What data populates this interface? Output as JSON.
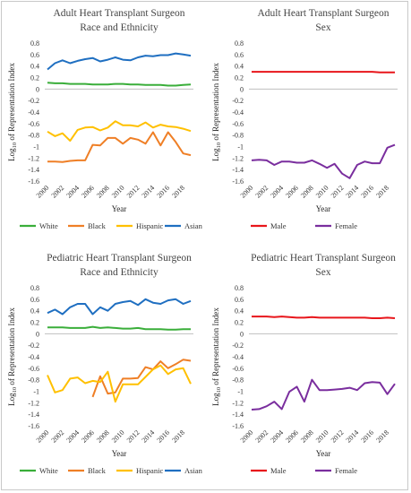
{
  "chart_data": [
    {
      "type": "line",
      "title": "Adult Heart Transplant Surgeon",
      "subtitle": "Race and Ethnicity",
      "xlabel": "Year",
      "ylabel": "Log10 of Representation Index",
      "ylim": [
        -1.6,
        0.8
      ],
      "xlim": [
        2000,
        2019
      ],
      "grid": false,
      "legend_position": "bottom",
      "x_ticks": [
        "2000",
        "2002",
        "2004",
        "2006",
        "2008",
        "2010",
        "2012",
        "2014",
        "2016",
        "2018"
      ],
      "y_ticks": [
        "0.8",
        "0.6",
        "0.4",
        "0.2",
        "0",
        "-0.2",
        "-0.4",
        "-0.6",
        "-0.8",
        "-1",
        "-1.2",
        "-1.4",
        "-1.6"
      ],
      "series": [
        {
          "name": "White",
          "color": "#3aae3a",
          "x": [
            2000,
            2001,
            2002,
            2003,
            2004,
            2005,
            2006,
            2007,
            2008,
            2009,
            2010,
            2011,
            2012,
            2013,
            2014,
            2015,
            2016,
            2017,
            2018,
            2019
          ],
          "values": [
            0.11,
            0.1,
            0.1,
            0.09,
            0.09,
            0.09,
            0.08,
            0.08,
            0.08,
            0.09,
            0.09,
            0.08,
            0.08,
            0.07,
            0.07,
            0.07,
            0.06,
            0.06,
            0.07,
            0.08
          ]
        },
        {
          "name": "Black",
          "color": "#ef7f26",
          "x": [
            2000,
            2001,
            2002,
            2003,
            2004,
            2005,
            2006,
            2007,
            2008,
            2009,
            2010,
            2011,
            2012,
            2013,
            2014,
            2015,
            2016,
            2017,
            2018,
            2019
          ],
          "values": [
            -1.26,
            -1.26,
            -1.27,
            -1.25,
            -1.24,
            -1.24,
            -0.97,
            -0.98,
            -0.85,
            -0.85,
            -0.95,
            -0.85,
            -0.88,
            -0.95,
            -0.75,
            -0.98,
            -0.75,
            -0.92,
            -1.12,
            -1.15
          ]
        },
        {
          "name": "Hispanic",
          "color": "#ffc000",
          "x": [
            2000,
            2001,
            2002,
            2003,
            2004,
            2005,
            2006,
            2007,
            2008,
            2009,
            2010,
            2011,
            2012,
            2013,
            2014,
            2015,
            2016,
            2017,
            2018,
            2019
          ],
          "values": [
            -0.74,
            -0.82,
            -0.77,
            -0.9,
            -0.71,
            -0.67,
            -0.66,
            -0.72,
            -0.67,
            -0.56,
            -0.63,
            -0.63,
            -0.65,
            -0.58,
            -0.67,
            -0.62,
            -0.65,
            -0.66,
            -0.69,
            -0.73
          ]
        },
        {
          "name": "Asian",
          "color": "#1f6fc1",
          "x": [
            2000,
            2001,
            2002,
            2003,
            2004,
            2005,
            2006,
            2007,
            2008,
            2009,
            2010,
            2011,
            2012,
            2013,
            2014,
            2015,
            2016,
            2017,
            2018,
            2019
          ],
          "values": [
            0.34,
            0.45,
            0.5,
            0.45,
            0.49,
            0.52,
            0.54,
            0.48,
            0.51,
            0.55,
            0.51,
            0.5,
            0.55,
            0.58,
            0.57,
            0.59,
            0.59,
            0.62,
            0.6,
            0.58
          ]
        }
      ]
    },
    {
      "type": "line",
      "title": "Adult Heart Transplant Surgeon",
      "subtitle": "Sex",
      "xlabel": "Year",
      "ylabel": "Log10 of Representation Index",
      "ylim": [
        -1.6,
        0.8
      ],
      "xlim": [
        2000,
        2019
      ],
      "grid": false,
      "legend_position": "bottom",
      "x_ticks": [
        "2000",
        "2002",
        "2004",
        "2006",
        "2008",
        "2010",
        "2012",
        "2014",
        "2016",
        "2018"
      ],
      "y_ticks": [
        "0.8",
        "0.6",
        "0.4",
        "0.2",
        "0",
        "-0.2",
        "-0.4",
        "-0.6",
        "-0.8",
        "-1",
        "-1.2",
        "-1.4",
        "-1.6"
      ],
      "series": [
        {
          "name": "Male",
          "color": "#e8161b",
          "x": [
            2000,
            2001,
            2002,
            2003,
            2004,
            2005,
            2006,
            2007,
            2008,
            2009,
            2010,
            2011,
            2012,
            2013,
            2014,
            2015,
            2016,
            2017,
            2018,
            2019
          ],
          "values": [
            0.3,
            0.3,
            0.3,
            0.3,
            0.3,
            0.3,
            0.3,
            0.3,
            0.3,
            0.3,
            0.3,
            0.3,
            0.3,
            0.3,
            0.3,
            0.3,
            0.3,
            0.29,
            0.29,
            0.29
          ]
        },
        {
          "name": "Female",
          "color": "#7a2e9e",
          "x": [
            2000,
            2001,
            2002,
            2003,
            2004,
            2005,
            2006,
            2007,
            2008,
            2009,
            2010,
            2011,
            2012,
            2013,
            2014,
            2015,
            2016,
            2017,
            2018,
            2019
          ],
          "values": [
            -1.24,
            -1.23,
            -1.24,
            -1.32,
            -1.26,
            -1.26,
            -1.28,
            -1.28,
            -1.24,
            -1.3,
            -1.37,
            -1.3,
            -1.47,
            -1.55,
            -1.32,
            -1.26,
            -1.29,
            -1.29,
            -1.02,
            -0.97
          ]
        }
      ]
    },
    {
      "type": "line",
      "title": "Pediatric Heart Transplant Surgeon",
      "subtitle": "Race and Ethnicity",
      "xlabel": "Year",
      "ylabel": "Log10 of Representation Index",
      "ylim": [
        -1.6,
        0.8
      ],
      "xlim": [
        2000,
        2019
      ],
      "grid": false,
      "legend_position": "bottom",
      "x_ticks": [
        "2000",
        "2002",
        "2004",
        "2006",
        "2008",
        "2010",
        "2012",
        "2014",
        "2016",
        "2018"
      ],
      "y_ticks": [
        "0.8",
        "0.6",
        "0.4",
        "0.2",
        "0",
        "-0.2",
        "-0.4",
        "-0.6",
        "-0.8",
        "-1",
        "-1.2",
        "-1.4",
        "-1.6"
      ],
      "series": [
        {
          "name": "White",
          "color": "#3aae3a",
          "x": [
            2000,
            2001,
            2002,
            2003,
            2004,
            2005,
            2006,
            2007,
            2008,
            2009,
            2010,
            2011,
            2012,
            2013,
            2014,
            2015,
            2016,
            2017,
            2018,
            2019
          ],
          "values": [
            0.11,
            0.11,
            0.11,
            0.1,
            0.1,
            0.1,
            0.12,
            0.1,
            0.11,
            0.1,
            0.09,
            0.09,
            0.1,
            0.08,
            0.08,
            0.08,
            0.07,
            0.07,
            0.08,
            0.08
          ]
        },
        {
          "name": "Black",
          "color": "#ef7f26",
          "x": [
            2006,
            2007,
            2008,
            2009,
            2010,
            2011,
            2012,
            2013,
            2014,
            2015,
            2016,
            2017,
            2018,
            2019
          ],
          "values": [
            -1.1,
            -0.74,
            -1.04,
            -1.02,
            -0.78,
            -0.78,
            -0.77,
            -0.58,
            -0.62,
            -0.48,
            -0.6,
            -0.53,
            -0.45,
            -0.47
          ]
        },
        {
          "name": "Hispanic",
          "color": "#ffc000",
          "x": [
            2000,
            2001,
            2002,
            2003,
            2004,
            2005,
            2006,
            2007,
            2008,
            2009,
            2010,
            2011,
            2012,
            2013,
            2014,
            2015,
            2016,
            2017,
            2018,
            2019
          ],
          "values": [
            -0.72,
            -1.02,
            -0.98,
            -0.78,
            -0.76,
            -0.86,
            -0.82,
            -0.84,
            -0.66,
            -1.18,
            -0.88,
            -0.88,
            -0.88,
            -0.75,
            -0.62,
            -0.55,
            -0.7,
            -0.62,
            -0.6,
            -0.87
          ]
        },
        {
          "name": "Asian",
          "color": "#1f6fc1",
          "x": [
            2000,
            2001,
            2002,
            2003,
            2004,
            2005,
            2006,
            2007,
            2008,
            2009,
            2010,
            2011,
            2012,
            2013,
            2014,
            2015,
            2016,
            2017,
            2018,
            2019
          ],
          "values": [
            0.36,
            0.42,
            0.34,
            0.46,
            0.52,
            0.52,
            0.34,
            0.46,
            0.4,
            0.52,
            0.55,
            0.57,
            0.5,
            0.6,
            0.54,
            0.52,
            0.58,
            0.6,
            0.52,
            0.57
          ]
        }
      ]
    },
    {
      "type": "line",
      "title": "Pediatric Heart Transplant Surgeon",
      "subtitle": "Sex",
      "xlabel": "Year",
      "ylabel": "Log10 of Representation Index",
      "ylim": [
        -1.6,
        0.8
      ],
      "xlim": [
        2000,
        2019
      ],
      "grid": false,
      "legend_position": "bottom",
      "x_ticks": [
        "2000",
        "2002",
        "2004",
        "2006",
        "2008",
        "2010",
        "2012",
        "2014",
        "2016",
        "2018"
      ],
      "y_ticks": [
        "0.8",
        "0.6",
        "0.4",
        "0.2",
        "0",
        "-0.2",
        "-0.4",
        "-0.6",
        "-0.8",
        "-1",
        "-1.2",
        "-1.4",
        "-1.6"
      ],
      "series": [
        {
          "name": "Male",
          "color": "#e8161b",
          "x": [
            2000,
            2001,
            2002,
            2003,
            2004,
            2005,
            2006,
            2007,
            2008,
            2009,
            2010,
            2011,
            2012,
            2013,
            2014,
            2015,
            2016,
            2017,
            2018,
            2019
          ],
          "values": [
            0.3,
            0.3,
            0.3,
            0.29,
            0.3,
            0.29,
            0.28,
            0.28,
            0.29,
            0.28,
            0.28,
            0.28,
            0.28,
            0.28,
            0.28,
            0.28,
            0.27,
            0.27,
            0.28,
            0.27
          ]
        },
        {
          "name": "Female",
          "color": "#7a2e9e",
          "x": [
            2000,
            2001,
            2002,
            2003,
            2004,
            2005,
            2006,
            2007,
            2008,
            2009,
            2010,
            2011,
            2012,
            2013,
            2014,
            2015,
            2016,
            2017,
            2018,
            2019
          ],
          "values": [
            -1.32,
            -1.31,
            -1.26,
            -1.18,
            -1.31,
            -1.01,
            -0.92,
            -1.18,
            -0.8,
            -0.98,
            -0.98,
            -0.97,
            -0.96,
            -0.94,
            -0.98,
            -0.86,
            -0.84,
            -0.85,
            -1.05,
            -0.87
          ]
        }
      ]
    }
  ]
}
